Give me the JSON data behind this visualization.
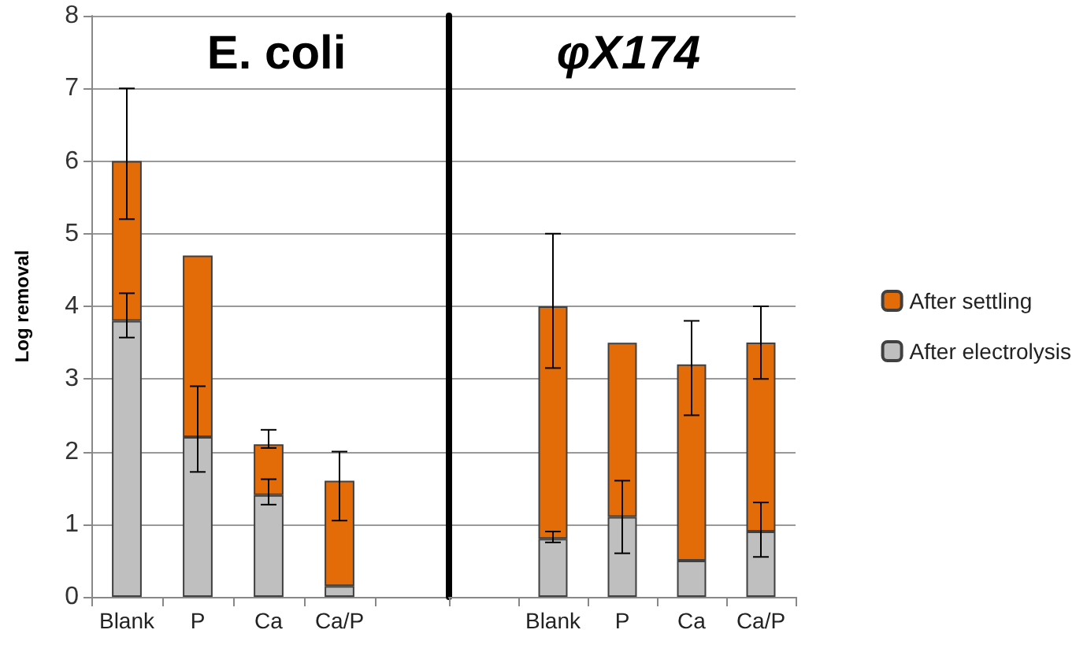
{
  "chart_data": [
    {
      "type": "bar",
      "stacked": true,
      "title": "E. coli",
      "ylabel": "Log removal",
      "categories": [
        "Blank",
        "P",
        "Ca",
        "Ca/P",
        null
      ],
      "series": [
        {
          "color": "#bfbfbf",
          "values": [
            3.8,
            2.2,
            1.4,
            0.15,
            null
          ],
          "errors": [
            [
              3.57,
              4.18
            ],
            [
              1.72,
              2.9
            ],
            [
              1.27,
              1.62
            ],
            null,
            null
          ]
        },
        {
          "color": "#e36c09",
          "values": [
            2.2,
            2.5,
            0.7,
            1.45,
            null
          ],
          "errors": [
            [
              5.2,
              7.0
            ],
            null,
            [
              2.05,
              2.3
            ],
            [
              1.05,
              2.0
            ],
            null
          ]
        }
      ],
      "ylim": [
        0,
        8
      ],
      "yticks": [
        0,
        1,
        2,
        3,
        4,
        5,
        6,
        7,
        8
      ],
      "grid": "y"
    },
    {
      "type": "bar",
      "stacked": true,
      "title": "φX174",
      "categories": [
        null,
        "Blank",
        "P",
        "Ca",
        "Ca/P"
      ],
      "series": [
        {
          "name": "After electrolysis",
          "color": "#bfbfbf",
          "values": [
            null,
            0.8,
            1.1,
            0.5,
            0.9
          ],
          "errors": [
            null,
            [
              0.75,
              0.9
            ],
            [
              0.6,
              1.6
            ],
            null,
            [
              0.55,
              1.3
            ]
          ]
        },
        {
          "name": "After settling",
          "color": "#e36c09",
          "values": [
            null,
            3.2,
            2.4,
            2.7,
            2.6
          ],
          "errors": [
            null,
            [
              3.15,
              5.0
            ],
            null,
            [
              2.5,
              3.8
            ],
            [
              3.0,
              4.0
            ]
          ]
        }
      ],
      "ylim": [
        0,
        8
      ],
      "yticks": [
        0,
        1,
        2,
        3,
        4,
        5,
        6,
        7,
        8
      ],
      "grid": "y",
      "legend": "right",
      "tick_labels": "x"
    }
  ]
}
